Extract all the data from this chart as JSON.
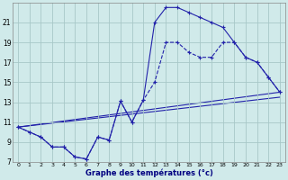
{
  "xlabel": "Graphe des températures (°c)",
  "bg_color": "#d0eaea",
  "grid_color": "#a8c8c8",
  "line_color": "#2222aa",
  "xlim_min": -0.5,
  "xlim_max": 23.5,
  "ylim_min": 7,
  "ylim_max": 23,
  "xticks": [
    0,
    1,
    2,
    3,
    4,
    5,
    6,
    7,
    8,
    9,
    10,
    11,
    12,
    13,
    14,
    15,
    16,
    17,
    18,
    19,
    20,
    21,
    22,
    23
  ],
  "yticks": [
    7,
    9,
    11,
    13,
    15,
    17,
    19,
    21
  ],
  "curve1_x": [
    0,
    1,
    2,
    3,
    4,
    5,
    6,
    7,
    8,
    9,
    10,
    11,
    12,
    13,
    14,
    15,
    16,
    17,
    18,
    19,
    20,
    21,
    22,
    23
  ],
  "curve1_y": [
    10.5,
    10.0,
    9.5,
    8.5,
    8.5,
    7.5,
    7.3,
    9.5,
    9.2,
    13.1,
    11.0,
    13.2,
    21.0,
    22.5,
    22.5,
    22.0,
    21.5,
    21.0,
    20.5,
    19.0,
    17.5,
    17.0,
    15.5,
    14.0
  ],
  "curve2_x": [
    0,
    1,
    2,
    3,
    4,
    5,
    6,
    7,
    8,
    9,
    10,
    11,
    12,
    13,
    14,
    15,
    16,
    17,
    18,
    19,
    20,
    21,
    22,
    23
  ],
  "curve2_y": [
    10.5,
    10.0,
    9.5,
    8.5,
    8.5,
    7.5,
    7.3,
    9.5,
    9.2,
    13.1,
    11.0,
    13.2,
    15.0,
    19.0,
    19.0,
    18.0,
    17.5,
    17.5,
    19.0,
    19.0,
    17.5,
    17.0,
    15.5,
    14.0
  ],
  "line1_x": [
    0,
    23
  ],
  "line1_y": [
    10.5,
    14.0
  ],
  "line2_x": [
    0,
    23
  ],
  "line2_y": [
    10.5,
    13.5
  ]
}
